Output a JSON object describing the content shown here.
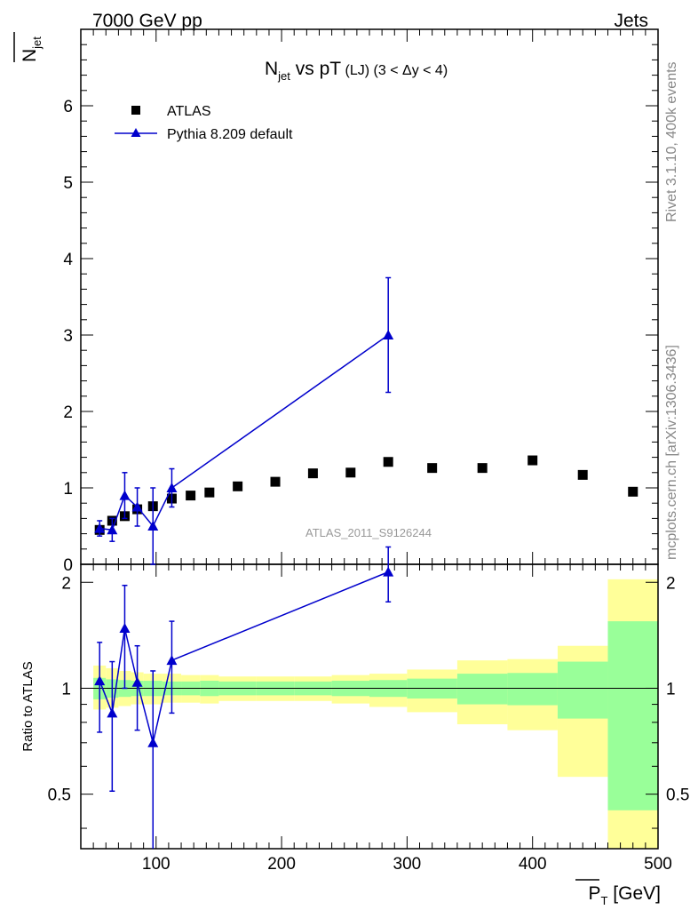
{
  "header": {
    "left": "7000 GeV pp",
    "right": "Jets"
  },
  "side": {
    "rivet": "Rivet 3.1.10,  400k events",
    "mcplots": "mcplots.cern.ch [arXiv:1306.3436]"
  },
  "watermark": "ATLAS_2011_S9126244",
  "title": {
    "main": "N",
    "sub": "jet",
    "rest": " vs pT",
    "small": " (LJ) (3 < Δy < 4)"
  },
  "ylabel": {
    "main": "N",
    "sub": "jet"
  },
  "ratio_ylabel": "Ratio to ATLAS",
  "xlabel": {
    "main": "P",
    "sub": "T",
    "unit": " [GeV]"
  },
  "legend": {
    "data": "ATLAS",
    "mc": "Pythia 8.209 default"
  },
  "colors": {
    "data": "#000000",
    "mc": "#0000cc",
    "band_inner": "#99ff99",
    "band_outer": "#ffff99"
  },
  "chart_data": [
    {
      "type": "scatter",
      "title": "Njet vs pT (LJ) (3 < Δy < 4)",
      "xlim": [
        40,
        500
      ],
      "ylim": [
        0,
        7
      ],
      "yticks": [
        0,
        1,
        2,
        3,
        4,
        5,
        6
      ],
      "series": [
        {
          "name": "ATLAS",
          "x": [
            55,
            65,
            75,
            85,
            97.5,
            112.5,
            127.5,
            142.5,
            165,
            195,
            225,
            255,
            285,
            320,
            360,
            400,
            440,
            480
          ],
          "y": [
            0.45,
            0.57,
            0.63,
            0.72,
            0.76,
            0.86,
            0.9,
            0.94,
            1.02,
            1.08,
            1.19,
            1.2,
            1.34,
            1.26,
            1.26,
            1.36,
            1.17,
            0.95
          ]
        },
        {
          "name": "Pythia 8.209 default",
          "x": [
            55,
            65,
            75,
            85,
            97.5,
            112.5,
            285
          ],
          "y": [
            0.47,
            0.45,
            0.9,
            0.75,
            0.5,
            1.0,
            3.0
          ],
          "err": [
            0.1,
            0.15,
            0.3,
            0.25,
            0.5,
            0.25,
            0.75
          ]
        }
      ]
    },
    {
      "type": "scatter",
      "ylabel": "Ratio to ATLAS",
      "xlabel": "PT [GeV]",
      "xlim": [
        40,
        500
      ],
      "ylim": [
        0.35,
        2.25
      ],
      "yticks": [
        0.5,
        1,
        2
      ],
      "xticks": [
        100,
        200,
        300,
        400,
        500
      ],
      "series": [
        {
          "name": "Pythia 8.209 default",
          "x": [
            55,
            65,
            75,
            85,
            97.5,
            112.5,
            285
          ],
          "y": [
            1.05,
            0.85,
            1.48,
            1.04,
            0.7,
            1.2,
            2.14
          ],
          "err": [
            0.3,
            0.34,
            0.48,
            0.28,
            0.42,
            0.35,
            0.38
          ]
        }
      ],
      "bands": [
        {
          "x0": 50,
          "x1": 60,
          "inner": [
            0.93,
            1.07
          ],
          "outer": [
            0.87,
            1.16
          ]
        },
        {
          "x0": 60,
          "x1": 70,
          "inner": [
            0.94,
            1.06
          ],
          "outer": [
            0.88,
            1.14
          ]
        },
        {
          "x0": 70,
          "x1": 80,
          "inner": [
            0.945,
            1.055
          ],
          "outer": [
            0.89,
            1.12
          ]
        },
        {
          "x0": 80,
          "x1": 90,
          "inner": [
            0.95,
            1.05
          ],
          "outer": [
            0.9,
            1.11
          ]
        },
        {
          "x0": 90,
          "x1": 105,
          "inner": [
            0.95,
            1.05
          ],
          "outer": [
            0.9,
            1.1
          ]
        },
        {
          "x0": 105,
          "x1": 120,
          "inner": [
            0.955,
            1.045
          ],
          "outer": [
            0.91,
            1.1
          ]
        },
        {
          "x0": 120,
          "x1": 135,
          "inner": [
            0.955,
            1.045
          ],
          "outer": [
            0.91,
            1.09
          ]
        },
        {
          "x0": 135,
          "x1": 150,
          "inner": [
            0.95,
            1.05
          ],
          "outer": [
            0.905,
            1.09
          ]
        },
        {
          "x0": 150,
          "x1": 180,
          "inner": [
            0.955,
            1.045
          ],
          "outer": [
            0.92,
            1.08
          ]
        },
        {
          "x0": 180,
          "x1": 210,
          "inner": [
            0.955,
            1.045
          ],
          "outer": [
            0.92,
            1.08
          ]
        },
        {
          "x0": 210,
          "x1": 240,
          "inner": [
            0.955,
            1.045
          ],
          "outer": [
            0.92,
            1.08
          ]
        },
        {
          "x0": 240,
          "x1": 270,
          "inner": [
            0.95,
            1.05
          ],
          "outer": [
            0.905,
            1.09
          ]
        },
        {
          "x0": 270,
          "x1": 300,
          "inner": [
            0.945,
            1.055
          ],
          "outer": [
            0.885,
            1.1
          ]
        },
        {
          "x0": 300,
          "x1": 340,
          "inner": [
            0.935,
            1.065
          ],
          "outer": [
            0.855,
            1.13
          ]
        },
        {
          "x0": 340,
          "x1": 380,
          "inner": [
            0.9,
            1.1
          ],
          "outer": [
            0.79,
            1.2
          ]
        },
        {
          "x0": 380,
          "x1": 420,
          "inner": [
            0.895,
            1.105
          ],
          "outer": [
            0.76,
            1.21
          ]
        },
        {
          "x0": 420,
          "x1": 460,
          "inner": [
            0.82,
            1.19
          ],
          "outer": [
            0.56,
            1.32
          ]
        },
        {
          "x0": 460,
          "x1": 500,
          "inner": [
            0.45,
            1.55
          ],
          "outer": [
            0.35,
            2.04
          ]
        }
      ]
    }
  ]
}
